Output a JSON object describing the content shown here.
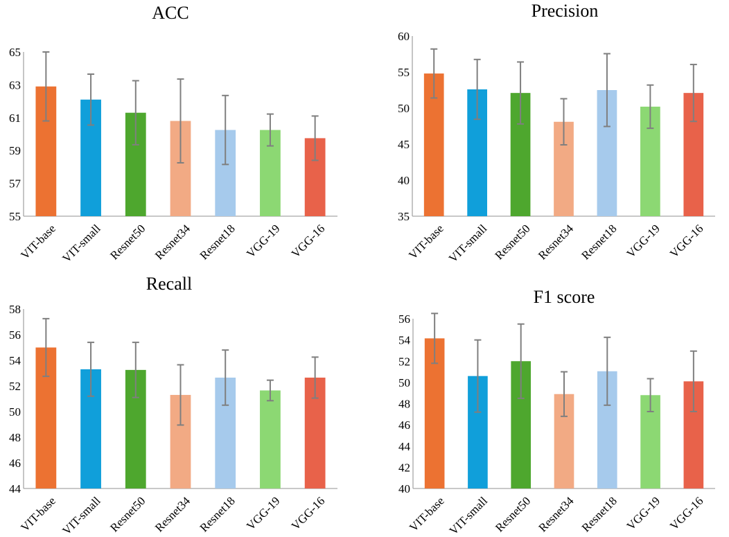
{
  "chart_data": [
    {
      "type": "bar",
      "title": "ACC",
      "categories": [
        "VIT-base",
        "VIT-small",
        "Resnet50",
        "Resnet34",
        "Resnet18",
        "VGG-19",
        "VGG-16"
      ],
      "values": [
        62.9,
        62.1,
        61.3,
        60.8,
        60.25,
        60.25,
        59.75
      ],
      "errors": [
        2.1,
        1.55,
        1.95,
        2.55,
        2.1,
        0.97,
        1.35
      ],
      "ylim": [
        55,
        65
      ],
      "yticks": [
        55,
        57,
        59,
        61,
        63,
        65
      ],
      "xlabel": "",
      "ylabel": ""
    },
    {
      "type": "bar",
      "title": "Precision",
      "categories": [
        "VIT-base",
        "VIT-small",
        "Resnet50",
        "Resnet34",
        "Resnet18",
        "VGG-19",
        "VGG-16"
      ],
      "values": [
        54.8,
        52.6,
        52.1,
        48.1,
        52.5,
        50.2,
        52.1
      ],
      "errors": [
        3.4,
        4.15,
        4.3,
        3.2,
        5.05,
        3.0,
        3.95
      ],
      "ylim": [
        35,
        60
      ],
      "yticks": [
        35,
        40,
        45,
        50,
        55,
        60
      ],
      "xlabel": "",
      "ylabel": ""
    },
    {
      "type": "bar",
      "title": "Recall",
      "categories": [
        "VIT-base",
        "VIT-small",
        "Resnet50",
        "Resnet34",
        "Resnet18",
        "VGG-19",
        "VGG-16"
      ],
      "values": [
        55.0,
        53.3,
        53.25,
        51.3,
        52.65,
        51.65,
        52.65
      ],
      "errors": [
        2.25,
        2.1,
        2.15,
        2.35,
        2.15,
        0.8,
        1.6
      ],
      "ylim": [
        44,
        58
      ],
      "yticks": [
        44,
        46,
        48,
        50,
        52,
        54,
        56,
        58
      ],
      "xlabel": "",
      "ylabel": ""
    },
    {
      "type": "bar",
      "title": "F1 score",
      "categories": [
        "VIT-base",
        "VIT-small",
        "Resnet50",
        "Resnet34",
        "Resnet18",
        "VGG-19",
        "VGG-16"
      ],
      "values": [
        54.15,
        50.6,
        52.0,
        48.9,
        51.05,
        48.8,
        50.1
      ],
      "errors": [
        2.35,
        3.4,
        3.5,
        2.1,
        3.2,
        1.55,
        2.85
      ],
      "ylim": [
        40,
        56
      ],
      "yticks": [
        40,
        42,
        44,
        46,
        48,
        50,
        52,
        54,
        56
      ],
      "xlabel": "",
      "ylabel": ""
    }
  ],
  "colors": {
    "bars": [
      "#ec7232",
      "#109fda",
      "#4ea72e",
      "#f2aa84",
      "#a6caec",
      "#8cd873",
      "#e8624a"
    ],
    "error_bar": "#7f7f7f",
    "axis": "#a6a6a6"
  }
}
